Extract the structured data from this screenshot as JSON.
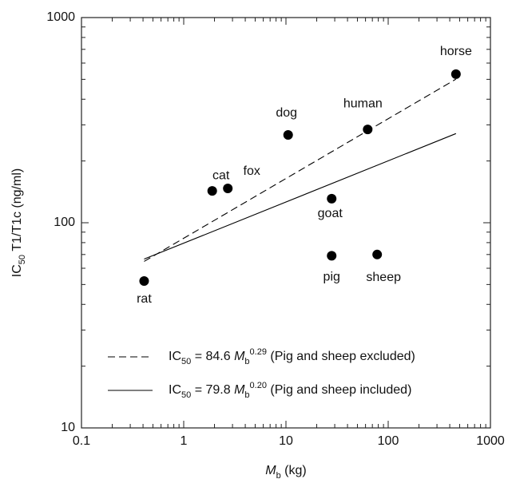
{
  "chart_data": {
    "type": "scatter",
    "x_label": [
      "M",
      "b",
      " (kg)"
    ],
    "y_label": [
      "IC",
      "50",
      " T1/T1c (ng/ml)"
    ],
    "log_x": true,
    "log_y": true,
    "xlim": [
      0.1,
      1000
    ],
    "ylim": [
      10,
      1000
    ],
    "xticks": [
      0.1,
      1,
      10,
      100,
      1000
    ],
    "yticks": [
      10,
      100,
      1000
    ],
    "xminorticks": [
      0.2,
      0.3,
      0.4,
      0.5,
      0.6,
      0.7,
      0.8,
      0.9,
      2,
      3,
      4,
      5,
      6,
      7,
      8,
      9,
      20,
      30,
      40,
      50,
      60,
      70,
      80,
      90,
      200,
      300,
      400,
      500,
      600,
      700,
      800,
      900
    ],
    "yminorticks": [
      20,
      30,
      40,
      50,
      60,
      70,
      80,
      90,
      200,
      300,
      400,
      500,
      600,
      700,
      800,
      900
    ],
    "points": {
      "labels": [
        "rat",
        "cat",
        "fox",
        "dog",
        "goat",
        "pig",
        "sheep",
        "human",
        "horse"
      ],
      "x": [
        0.41,
        1.9,
        2.7,
        10.5,
        28,
        28,
        78,
        63,
        460
      ],
      "values": [
        52,
        143,
        147,
        268,
        131,
        69,
        70,
        285,
        530
      ],
      "color": "#000000"
    },
    "series": [
      {
        "name": [
          "IC",
          "50",
          " = 84.6 ",
          "M",
          "b",
          "0.29",
          " (Pig and sheep excluded)"
        ],
        "style": "dashed",
        "color": "#000000",
        "x": [
          0.41,
          460
        ],
        "values": [
          64.8,
          501
        ]
      },
      {
        "name": [
          "IC",
          "50",
          " = 79.8 ",
          "M",
          "b",
          "0.20",
          " (Pig and sheep included)"
        ],
        "style": "solid",
        "color": "#000000",
        "x": [
          0.41,
          460
        ],
        "values": [
          66.5,
          272
        ]
      }
    ],
    "legend": "lower left"
  }
}
